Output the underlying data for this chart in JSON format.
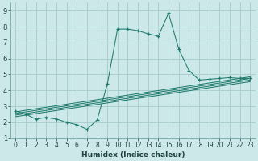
{
  "xlabel": "Humidex (Indice chaleur)",
  "xlim": [
    -0.5,
    23.5
  ],
  "ylim": [
    1,
    9.5
  ],
  "xticks": [
    0,
    1,
    2,
    3,
    4,
    5,
    6,
    7,
    8,
    9,
    10,
    11,
    12,
    13,
    14,
    15,
    16,
    17,
    18,
    19,
    20,
    21,
    22,
    23
  ],
  "yticks": [
    1,
    2,
    3,
    4,
    5,
    6,
    7,
    8,
    9
  ],
  "bg_color": "#cde8e8",
  "line_color": "#1e7a6e",
  "grid_color": "#aacfcf",
  "main_line": {
    "x": [
      0,
      1,
      2,
      3,
      4,
      5,
      6,
      7,
      8,
      9,
      10,
      11,
      12,
      13,
      14,
      15,
      16,
      17,
      18,
      19,
      20,
      21,
      22,
      23
    ],
    "y": [
      2.7,
      2.5,
      2.2,
      2.3,
      2.2,
      2.0,
      1.85,
      1.55,
      2.15,
      4.4,
      7.85,
      7.85,
      7.75,
      7.55,
      7.4,
      8.85,
      6.6,
      5.25,
      4.65,
      4.7,
      4.75,
      4.8,
      4.75,
      4.75
    ]
  },
  "ref_lines": [
    {
      "x": [
        0,
        23
      ],
      "y": [
        2.35,
        4.55
      ]
    },
    {
      "x": [
        0,
        23
      ],
      "y": [
        2.45,
        4.65
      ]
    },
    {
      "x": [
        0,
        23
      ],
      "y": [
        2.55,
        4.75
      ]
    },
    {
      "x": [
        0,
        23
      ],
      "y": [
        2.65,
        4.85
      ]
    }
  ]
}
